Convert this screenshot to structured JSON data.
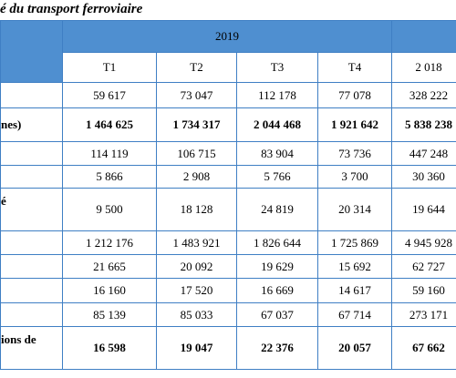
{
  "header": {
    "title": "é du transport ferroviaire"
  },
  "table": {
    "year": "2019",
    "columns": [
      "T1",
      "T2",
      "T3",
      "T4",
      "2 018"
    ],
    "rows": [
      {
        "values": [
          "59 617",
          "73 047",
          "112 178",
          "77 078",
          "328 222"
        ]
      },
      {
        "label": "nes)",
        "values": [
          "1 464 625",
          "1 734 317",
          "2 044 468",
          "1 921 642",
          "5 838 238"
        ]
      },
      {
        "values": [
          "114 119",
          "106 715",
          "83 904",
          "73 736",
          "447 248"
        ]
      },
      {
        "values": [
          "5 866",
          "2 908",
          "5 766",
          "3 700",
          "30 360"
        ]
      },
      {
        "label": "é",
        "values": [
          "9 500",
          "18 128",
          "24 819",
          "20 314",
          "19 644"
        ]
      },
      {
        "values": [
          "1 212 176",
          "1 483 921",
          "1 826 644",
          "1 725 869",
          "4 945 928"
        ]
      },
      {
        "values": [
          "21 665",
          "20 092",
          "19 629",
          "15 692",
          "62 727"
        ]
      },
      {
        "values": [
          "16 160",
          "17 520",
          "16 669",
          "14 617",
          "59 160"
        ]
      },
      {
        "values": [
          "85 139",
          "85 033",
          "67 037",
          "67 714",
          "273 171"
        ]
      },
      {
        "label": "ions de",
        "values": [
          "16 598",
          "19 047",
          "22 376",
          "20 057",
          "67 662"
        ]
      }
    ]
  }
}
